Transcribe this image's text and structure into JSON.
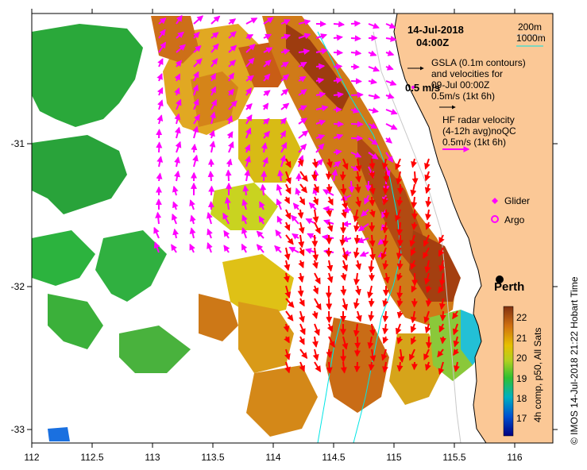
{
  "map": {
    "date": "14-Jul-2018",
    "time": "04:00Z",
    "bathy_legend": [
      "200m",
      "1000m"
    ],
    "gsla_text": [
      "GSLA (0.1m contours)",
      "and velocities for",
      "09-Jul 00:00Z",
      "0.5m/s (1kt 6h)"
    ],
    "gsla_scale_label": "0.5 m/s",
    "hf_text": [
      "HF radar velocity",
      "(4-12h avg)noQC",
      "0.5m/s (1kt 6h)"
    ],
    "glider_label": "Glider",
    "argo_label": "Argo",
    "city_label": "Perth",
    "x_ticks": [
      "112",
      "112.5",
      "113",
      "113.5",
      "114",
      "114.5",
      "115",
      "115.5",
      "116"
    ],
    "y_ticks": [
      "-31",
      "-32",
      "-33"
    ],
    "colorbar_ticks": [
      "22",
      "21",
      "20",
      "19",
      "18",
      "17"
    ],
    "colorbar_label": "4h comp, p50, All Sats",
    "credit": "© IMOS 14-Jul-2018 21:22 Hobart Time",
    "colors": {
      "land": "#fbc896",
      "radar_vectors": "#ff0000",
      "gsla_vectors": "#ff00ff",
      "contour_200m": "#c8c8c8",
      "contour_1000m": "#00e5e5",
      "sst_warm": "#b5470f",
      "sst_mid": "#d8a514",
      "sst_cool": "#22b83a"
    }
  }
}
